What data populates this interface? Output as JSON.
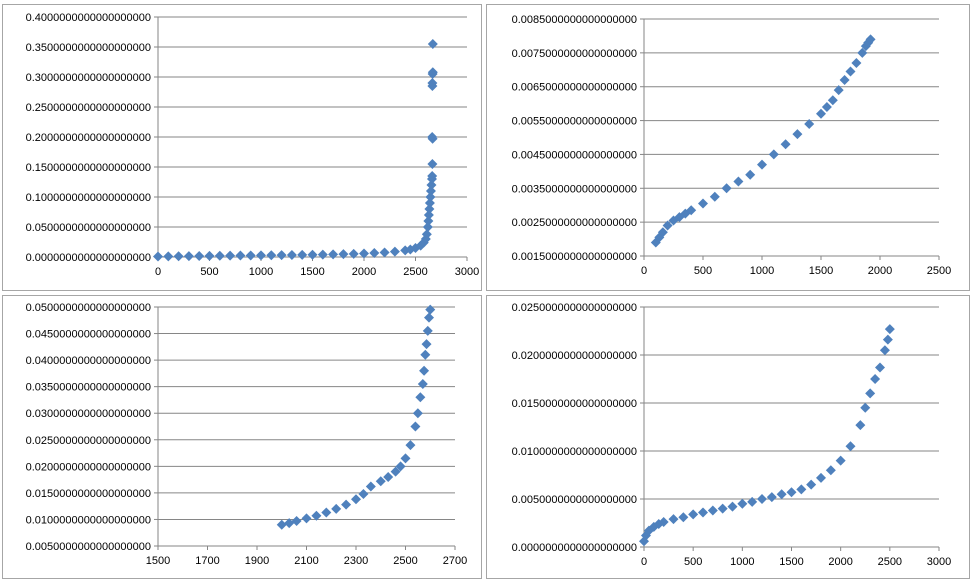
{
  "marker_color": "#4f81bd",
  "gridline_color": "#868686",
  "chart_data": [
    {
      "type": "scatter",
      "marker": "diamond",
      "xlim": [
        0,
        3000
      ],
      "xticks": [
        0,
        500,
        1000,
        1500,
        2000,
        2500,
        3000
      ],
      "xtick_labels": [
        "0",
        "500",
        "1000",
        "1500",
        "2000",
        "2500",
        "3000"
      ],
      "ylim": [
        0,
        0.4
      ],
      "yticks": [
        0,
        0.05,
        0.1,
        0.15,
        0.2,
        0.25,
        0.3,
        0.35,
        0.4
      ],
      "ytick_labels": [
        "0.0000000000000000000",
        "0.0500000000000000000",
        "0.1000000000000000000",
        "0.1500000000000000000",
        "0.2000000000000000000",
        "0.2500000000000000000",
        "0.3000000000000000000",
        "0.3500000000000000000",
        "0.4000000000000000000"
      ],
      "grid": true,
      "series": [
        {
          "x": [
            0,
            100,
            200,
            300,
            400,
            500,
            600,
            700,
            800,
            900,
            1000,
            1100,
            1200,
            1300,
            1400,
            1500,
            1600,
            1700,
            1800,
            1900,
            2000,
            2100,
            2200,
            2300,
            2400,
            2450,
            2500,
            2550,
            2580,
            2600,
            2610,
            2620,
            2625,
            2630,
            2635,
            2640,
            2645,
            2650,
            2655,
            2660,
            2662,
            2664,
            2666
          ],
          "y": [
            0.0008,
            0.001,
            0.0012,
            0.0014,
            0.0016,
            0.0018,
            0.002,
            0.0022,
            0.0024,
            0.0026,
            0.0028,
            0.003,
            0.0032,
            0.0034,
            0.0036,
            0.0038,
            0.004,
            0.0043,
            0.0047,
            0.0052,
            0.0058,
            0.0066,
            0.0076,
            0.009,
            0.011,
            0.0125,
            0.015,
            0.019,
            0.024,
            0.03,
            0.038,
            0.05,
            0.06,
            0.07,
            0.08,
            0.09,
            0.1,
            0.11,
            0.12,
            0.13,
            0.135,
            0.155,
            0.197
          ]
        },
        {
          "x": [
            2662,
            2664,
            2664,
            2666,
            2668,
            2668
          ],
          "y": [
            0.2,
            0.285,
            0.29,
            0.305,
            0.308,
            0.355
          ]
        }
      ]
    },
    {
      "type": "scatter",
      "marker": "diamond",
      "xlim": [
        0,
        2500
      ],
      "xticks": [
        0,
        500,
        1000,
        1500,
        2000,
        2500
      ],
      "xtick_labels": [
        "0",
        "500",
        "1000",
        "1500",
        "2000",
        "2500"
      ],
      "ylim": [
        0.0015,
        0.0085
      ],
      "yticks": [
        0.0015,
        0.0025,
        0.0035,
        0.0045,
        0.0055,
        0.0065,
        0.0075,
        0.0085
      ],
      "ytick_labels": [
        "0.0015000000000000000",
        "0.0025000000000000000",
        "0.0035000000000000000",
        "0.0045000000000000000",
        "0.0055000000000000000",
        "0.0065000000000000000",
        "0.0075000000000000000",
        "0.0085000000000000000"
      ],
      "grid": true,
      "series": [
        {
          "x": [
            100,
            130,
            160,
            200,
            250,
            300,
            350,
            400,
            500,
            600,
            700,
            800,
            900,
            1000,
            1100,
            1200,
            1300,
            1400,
            1500,
            1550,
            1600,
            1650,
            1700,
            1750,
            1800,
            1850,
            1880,
            1900,
            1920
          ],
          "y": [
            0.0019,
            0.00205,
            0.0022,
            0.0024,
            0.00255,
            0.00265,
            0.00275,
            0.00285,
            0.00305,
            0.00325,
            0.0035,
            0.0037,
            0.0039,
            0.0042,
            0.0045,
            0.0048,
            0.0051,
            0.0054,
            0.0057,
            0.0059,
            0.0061,
            0.0064,
            0.0067,
            0.00695,
            0.0072,
            0.0075,
            0.0077,
            0.0078,
            0.0079
          ]
        }
      ]
    },
    {
      "type": "scatter",
      "marker": "diamond",
      "xlim": [
        1500,
        2700
      ],
      "xticks": [
        1500,
        1700,
        1900,
        2100,
        2300,
        2500,
        2700
      ],
      "xtick_labels": [
        "1500",
        "1700",
        "1900",
        "2100",
        "2300",
        "2500",
        "2700"
      ],
      "ylim": [
        0.005,
        0.05
      ],
      "yticks": [
        0.005,
        0.01,
        0.015,
        0.02,
        0.025,
        0.03,
        0.035,
        0.04,
        0.045,
        0.05
      ],
      "ytick_labels": [
        "0.0050000000000000000",
        "0.0100000000000000000",
        "0.0150000000000000000",
        "0.0200000000000000000",
        "0.0250000000000000000",
        "0.0300000000000000000",
        "0.0350000000000000000",
        "0.0400000000000000000",
        "0.0450000000000000000",
        "0.0500000000000000000"
      ],
      "grid": true,
      "series": [
        {
          "x": [
            2000,
            2030,
            2060,
            2100,
            2140,
            2180,
            2220,
            2260,
            2300,
            2330,
            2360,
            2400,
            2430,
            2460,
            2480,
            2500,
            2520,
            2540,
            2550,
            2560,
            2570,
            2575,
            2580,
            2585,
            2590,
            2595,
            2600
          ],
          "y": [
            0.009,
            0.0093,
            0.0097,
            0.0102,
            0.0107,
            0.0113,
            0.012,
            0.0128,
            0.0138,
            0.0148,
            0.0162,
            0.0172,
            0.018,
            0.019,
            0.02,
            0.0215,
            0.024,
            0.0275,
            0.03,
            0.033,
            0.0355,
            0.038,
            0.041,
            0.043,
            0.0455,
            0.048,
            0.0495
          ]
        }
      ]
    },
    {
      "type": "scatter",
      "marker": "diamond",
      "xlim": [
        0,
        3000
      ],
      "xticks": [
        0,
        500,
        1000,
        1500,
        2000,
        2500,
        3000
      ],
      "xtick_labels": [
        "0",
        "500",
        "1000",
        "1500",
        "2000",
        "2500",
        "3000"
      ],
      "ylim": [
        0,
        0.025
      ],
      "yticks": [
        0,
        0.005,
        0.01,
        0.015,
        0.02,
        0.025
      ],
      "ytick_labels": [
        "0.0000000000000000000",
        "0.0050000000000000000",
        "0.0100000000000000000",
        "0.0150000000000000000",
        "0.0200000000000000000",
        "0.0250000000000000000"
      ],
      "grid": true,
      "series": [
        {
          "x": [
            0,
            20,
            50,
            100,
            150,
            200,
            300,
            400,
            500,
            600,
            700,
            800,
            900,
            1000,
            1100,
            1200,
            1300,
            1400,
            1500,
            1600,
            1700,
            1800,
            1900,
            2000,
            2100,
            2200,
            2250,
            2300,
            2350,
            2400,
            2450,
            2480,
            2500
          ],
          "y": [
            0.0006,
            0.0012,
            0.0017,
            0.0021,
            0.0024,
            0.0026,
            0.0029,
            0.0031,
            0.0034,
            0.0036,
            0.0038,
            0.004,
            0.0042,
            0.0045,
            0.0047,
            0.005,
            0.0052,
            0.0055,
            0.0057,
            0.006,
            0.0065,
            0.0072,
            0.008,
            0.009,
            0.0105,
            0.0127,
            0.0145,
            0.016,
            0.0175,
            0.0187,
            0.0205,
            0.0216,
            0.0227
          ]
        }
      ]
    }
  ]
}
